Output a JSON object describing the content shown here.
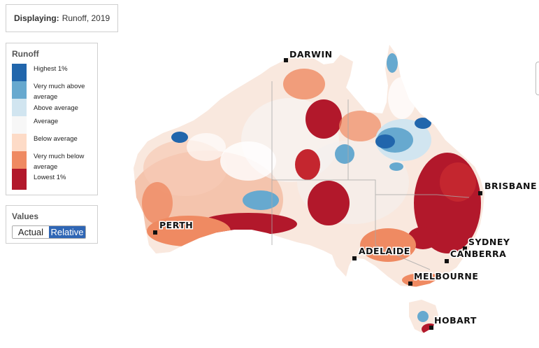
{
  "display": {
    "label": "Displaying:",
    "value": "Runoff, 2019"
  },
  "legend": {
    "title": "Runoff",
    "items": [
      {
        "label": "Highest 1%",
        "color": "#2166ac"
      },
      {
        "label": "Very much above average",
        "color": "#67a9cf"
      },
      {
        "label": "Above average",
        "color": "#d1e5f0"
      },
      {
        "label": "Average",
        "color": "#f7f7f7"
      },
      {
        "label": "Below average",
        "color": "#fddbc7"
      },
      {
        "label": "Very much below average",
        "color": "#ef8a62"
      },
      {
        "label": "Lowest 1%",
        "color": "#b2182b"
      }
    ]
  },
  "values": {
    "title": "Values",
    "options": [
      "Actual",
      "Relative"
    ],
    "selected": "Relative"
  },
  "cities": [
    "DARWIN",
    "BRISBANE",
    "PERTH",
    "SYDNEY",
    "CANBERRA",
    "ADELAIDE",
    "MELBOURNE",
    "HOBART"
  ]
}
